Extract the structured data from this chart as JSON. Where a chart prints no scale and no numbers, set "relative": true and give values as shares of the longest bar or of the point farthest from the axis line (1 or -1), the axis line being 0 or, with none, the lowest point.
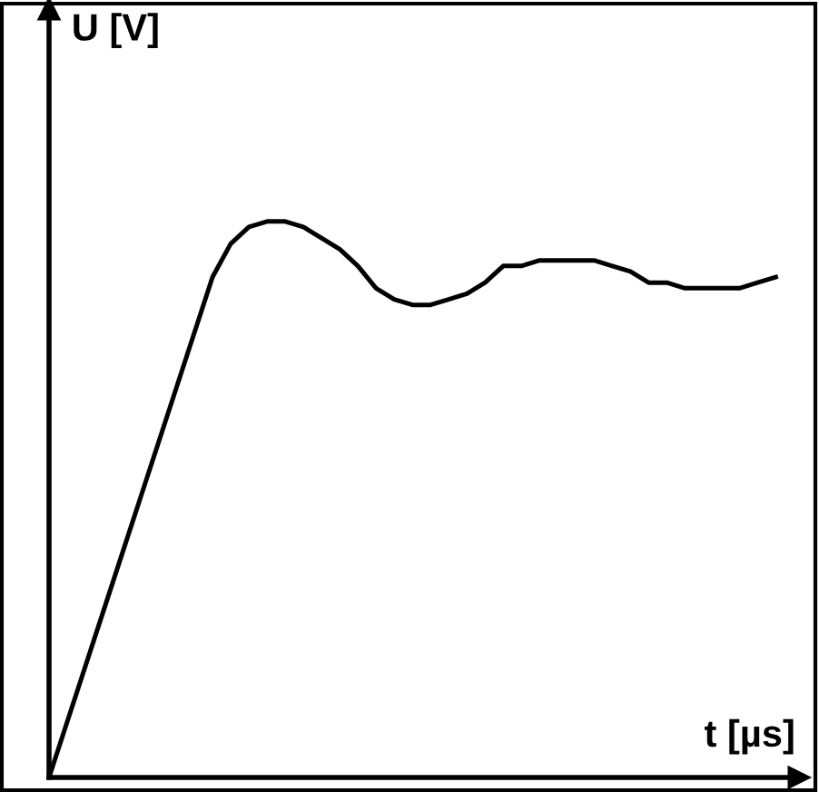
{
  "chart_data": {
    "type": "line",
    "relative": true,
    "xlabel": "t [µs]",
    "ylabel": "U [V]",
    "legend": false,
    "marker": "none",
    "line_style": "solid",
    "categories": [
      null,
      null,
      null,
      null,
      null,
      null,
      null,
      null,
      null,
      null,
      null,
      null,
      null,
      null,
      null,
      null,
      null,
      null,
      null,
      null,
      null,
      null,
      null,
      null,
      null,
      null,
      null,
      null,
      null,
      null,
      null,
      null,
      null,
      null,
      null,
      null,
      null,
      null,
      null,
      null,
      null
    ],
    "series": [
      {
        "color": "#000000",
        "values": [
          0,
          0.1,
          0.2,
          0.3,
          0.4,
          0.5,
          0.6,
          0.7,
          0.8,
          0.9,
          0.96,
          0.99,
          1.0,
          1.0,
          0.99,
          0.97,
          0.95,
          0.92,
          0.88,
          0.86,
          0.85,
          0.85,
          0.86,
          0.87,
          0.89,
          0.92,
          0.92,
          0.93,
          0.93,
          0.93,
          0.93,
          0.92,
          0.91,
          0.89,
          0.89,
          0.88,
          0.88,
          0.88,
          0.88,
          0.89,
          0.9
        ]
      }
    ]
  }
}
